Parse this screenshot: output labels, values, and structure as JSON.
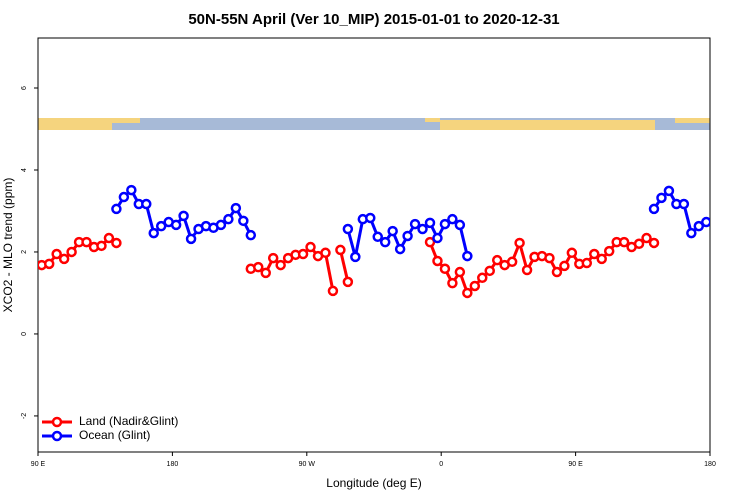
{
  "chart_data": {
    "type": "line",
    "title": "50N-55N April (Ver 10_MIP)   2015-01-01 to 2020-12-31",
    "x_label": "Longitude (deg E)",
    "y_label": "XCO2 - MLO trend (ppm)",
    "xlim": [
      90,
      540
    ],
    "xticks": [
      {
        "value": 90,
        "label": "90 E"
      },
      180,
      {
        "value": 270,
        "label": "90 W"
      },
      {
        "value": 360,
        "label": "0"
      },
      {
        "value": 450,
        "label": "90 E"
      },
      {
        "value": 540,
        "label": "180"
      }
    ],
    "ylim": [
      -2.88,
      7.22
    ],
    "yticks": [
      -2,
      0,
      2,
      4,
      6
    ],
    "legend": "lower left",
    "series": [
      {
        "name": "Land (Nadir&Glint)",
        "color": "#ff0000",
        "x": [
          92.5,
          97.5,
          102.5,
          107.5,
          112.5,
          117.5,
          122.5,
          127.5,
          132.5,
          137.5,
          142.5,
          null,
          232.5,
          237.5,
          242.5,
          247.5,
          252.5,
          257.5,
          262.5,
          267.5,
          272.5,
          277.5,
          282.5,
          287.5,
          null,
          292.5,
          297.5,
          null,
          352.5,
          357.5,
          362.5,
          367.5,
          372.5,
          377.5,
          382.5,
          387.5,
          392.5,
          397.5,
          402.5,
          407.5,
          412.5,
          417.5,
          422.5,
          427.5,
          432.5,
          437.5,
          442.5,
          447.5,
          452.5,
          457.5,
          462.5,
          467.5,
          472.5,
          477.5,
          482.5,
          487.5,
          492.5,
          497.5,
          502.5
        ],
        "values": [
          1.68,
          1.71,
          1.95,
          1.83,
          2.0,
          2.24,
          2.24,
          2.12,
          2.15,
          2.34,
          2.22,
          null,
          1.59,
          1.63,
          1.49,
          1.85,
          1.68,
          1.85,
          1.93,
          1.95,
          2.12,
          1.9,
          1.98,
          1.05,
          null,
          2.05,
          1.27,
          null,
          2.24,
          1.78,
          1.59,
          1.24,
          1.51,
          1.0,
          1.17,
          1.37,
          1.54,
          1.8,
          1.68,
          1.76,
          2.22,
          1.56,
          1.88,
          1.9,
          1.85,
          1.51,
          1.66,
          1.98,
          1.71,
          1.73,
          1.95,
          1.83,
          2.02,
          2.24,
          2.24,
          2.12,
          2.2,
          2.34,
          2.22
        ]
      },
      {
        "name": "Ocean (Glint)",
        "color": "#0000ff",
        "x": [
          142.5,
          147.5,
          152.5,
          157.5,
          162.5,
          167.5,
          172.5,
          177.5,
          182.5,
          187.5,
          192.5,
          197.5,
          202.5,
          207.5,
          212.5,
          217.5,
          222.5,
          227.5,
          232.5,
          null,
          297.5,
          302.5,
          307.5,
          312.5,
          317.5,
          322.5,
          327.5,
          332.5,
          337.5,
          342.5,
          347.5,
          352.5,
          357.5,
          362.5,
          367.5,
          372.5,
          377.5,
          null,
          502.5,
          507.5,
          512.5,
          517.5,
          522.5,
          527.5,
          532.5,
          537.5
        ],
        "values": [
          3.05,
          3.34,
          3.51,
          3.17,
          3.17,
          2.46,
          2.63,
          2.73,
          2.66,
          2.88,
          2.32,
          2.56,
          2.63,
          2.59,
          2.66,
          2.8,
          3.07,
          2.76,
          2.41,
          null,
          2.56,
          1.88,
          2.8,
          2.83,
          2.37,
          2.24,
          2.51,
          2.07,
          2.39,
          2.68,
          2.56,
          2.71,
          2.34,
          2.68,
          2.8,
          2.66,
          1.9,
          null,
          3.05,
          3.32,
          3.49,
          3.17,
          3.17,
          2.46,
          2.63,
          2.73
        ]
      }
    ]
  }
}
